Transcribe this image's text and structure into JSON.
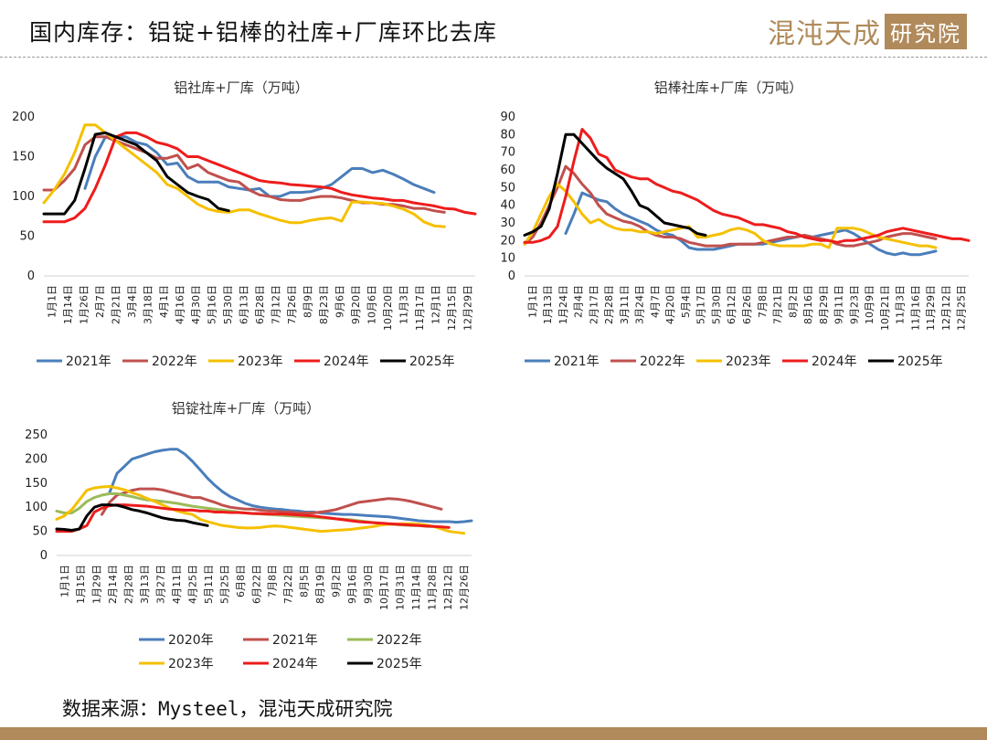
{
  "header": {
    "title": "国内库存：铝锭+铝棒的社库+厂库环比去库",
    "logo_text": "混沌天成",
    "logo_box_text": "研究院"
  },
  "footer": {
    "source": "数据来源：Mysteel，混沌天成研究院"
  },
  "colors": {
    "2020": "#4a7ebb",
    "2021": "#4a7ebb",
    "2022": "#c0504d",
    "2023": "#f5c000",
    "2024": "#ee1c1c",
    "2025": "#000000",
    "2022_ingot": "#9bbb59",
    "2021_ingot": "#c0504d",
    "accent": "#b08a5a"
  },
  "chart_data": [
    {
      "type": "line",
      "title": "铝社库+厂库（万吨）",
      "ylim": [
        0,
        200
      ],
      "yticks": [
        0,
        50,
        100,
        150,
        200
      ],
      "x_labels": [
        "1月1日",
        "1月14日",
        "1月26日",
        "2月7日",
        "2月21日",
        "3月4日",
        "3月18日",
        "4月1日",
        "4月16日",
        "4月30日",
        "5月16日",
        "5月30日",
        "6月13日",
        "6月28日",
        "7月12日",
        "7月26日",
        "8月9日",
        "8月23日",
        "9月6日",
        "9月20日",
        "10月6日",
        "10月20日",
        "11月3日",
        "11月17日",
        "12月1日",
        "12月15日",
        "12月29日"
      ],
      "series": [
        {
          "name": "2021年",
          "values": [
            null,
            null,
            null,
            null,
            110,
            150,
            175,
            175,
            175,
            168,
            165,
            155,
            140,
            142,
            125,
            118,
            118,
            118,
            112,
            110,
            108,
            110,
            100,
            100,
            105,
            105,
            106,
            110,
            115,
            125,
            135,
            135,
            130,
            133,
            128,
            122,
            115,
            110,
            105
          ]
        },
        {
          "name": "2022年",
          "values": [
            108,
            108,
            120,
            135,
            165,
            175,
            175,
            170,
            165,
            160,
            155,
            148,
            148,
            152,
            135,
            140,
            130,
            125,
            120,
            118,
            108,
            102,
            100,
            96,
            95,
            95,
            98,
            100,
            100,
            98,
            95,
            92,
            92,
            90,
            90,
            88,
            85,
            85,
            82,
            80
          ]
        },
        {
          "name": "2023年",
          "values": [
            92,
            108,
            128,
            155,
            190,
            190,
            180,
            170,
            160,
            150,
            140,
            130,
            115,
            110,
            100,
            90,
            84,
            81,
            80,
            83,
            83,
            78,
            74,
            70,
            67,
            67,
            70,
            72,
            73,
            69,
            93,
            93,
            92,
            91,
            88,
            84,
            78,
            68,
            63,
            62
          ]
        },
        {
          "name": "2024年",
          "values": [
            68,
            68,
            68,
            73,
            85,
            110,
            140,
            175,
            180,
            180,
            175,
            168,
            165,
            160,
            150,
            150,
            145,
            140,
            135,
            130,
            125,
            120,
            118,
            117,
            115,
            114,
            113,
            112,
            110,
            105,
            102,
            100,
            98,
            97,
            95,
            95,
            92,
            90,
            88,
            85,
            84,
            80,
            78
          ]
        },
        {
          "name": "2025年",
          "values": [
            78,
            78,
            78,
            95,
            135,
            178,
            180,
            175,
            170,
            165,
            155,
            145,
            125,
            115,
            105,
            100,
            96,
            85,
            82
          ]
        }
      ]
    },
    {
      "type": "line",
      "title": "铝棒社库+厂库（万吨）",
      "ylim": [
        0,
        90
      ],
      "yticks": [
        0,
        10,
        20,
        30,
        40,
        50,
        60,
        70,
        80,
        90
      ],
      "x_labels": [
        "1月1日",
        "1月13日",
        "1月24日",
        "2月4日",
        "2月17日",
        "2月28日",
        "3月11日",
        "3月24日",
        "4月7日",
        "4月20日",
        "5月4日",
        "5月17日",
        "5月30日",
        "6月12日",
        "6月26日",
        "7月8日",
        "7月21日",
        "8月2日",
        "8月16日",
        "8月29日",
        "9月11日",
        "9月23日",
        "10月9日",
        "10月21日",
        "11月3日",
        "11月16日",
        "11月29日",
        "12月12日",
        "12月25日"
      ],
      "series": [
        {
          "name": "2021年",
          "values": [
            null,
            null,
            null,
            null,
            null,
            24,
            35,
            47,
            45,
            43,
            42,
            38,
            35,
            33,
            31,
            29,
            26,
            24,
            23,
            20,
            16,
            15,
            15,
            15,
            16,
            17,
            18,
            18,
            18,
            18,
            19,
            20,
            21,
            22,
            23,
            22,
            23,
            24,
            25,
            26,
            24,
            21,
            18,
            15,
            13,
            12,
            13,
            12,
            12,
            13,
            14
          ]
        },
        {
          "name": "2022年",
          "values": [
            18,
            22,
            30,
            40,
            50,
            62,
            58,
            52,
            47,
            40,
            35,
            33,
            31,
            30,
            28,
            25,
            23,
            22,
            22,
            21,
            19,
            18,
            17,
            17,
            17,
            18,
            18,
            18,
            18,
            19,
            20,
            21,
            22,
            22,
            23,
            22,
            21,
            20,
            18,
            17,
            17,
            18,
            19,
            20,
            22,
            23,
            24,
            24,
            23,
            22,
            21
          ]
        },
        {
          "name": "2023年",
          "values": [
            18,
            25,
            35,
            45,
            52,
            48,
            42,
            35,
            30,
            32,
            29,
            27,
            26,
            26,
            25,
            25,
            24,
            25,
            26,
            27,
            28,
            22,
            22,
            23,
            24,
            26,
            27,
            26,
            24,
            20,
            18,
            17,
            17,
            17,
            17,
            18,
            18,
            16,
            27,
            27,
            27,
            26,
            24,
            22,
            21,
            20,
            19,
            18,
            17,
            17,
            16
          ]
        },
        {
          "name": "2024年",
          "values": [
            19,
            19,
            20,
            22,
            28,
            45,
            65,
            83,
            78,
            69,
            67,
            60,
            58,
            56,
            55,
            55,
            52,
            50,
            48,
            47,
            45,
            43,
            40,
            37,
            35,
            34,
            33,
            31,
            29,
            29,
            28,
            27,
            25,
            24,
            22,
            21,
            20,
            20,
            19,
            20,
            20,
            21,
            22,
            23,
            25,
            26,
            27,
            26,
            25,
            24,
            23,
            22,
            21,
            21,
            20
          ]
        },
        {
          "name": "2025年",
          "values": [
            23,
            25,
            28,
            38,
            58,
            80,
            80,
            75,
            70,
            65,
            61,
            58,
            55,
            48,
            40,
            38,
            34,
            30,
            29,
            28,
            27,
            24,
            23
          ]
        }
      ]
    },
    {
      "type": "line",
      "title": "铝锭社库+厂库（万吨）",
      "ylim": [
        0,
        250
      ],
      "yticks": [
        0,
        50,
        100,
        150,
        200,
        250
      ],
      "x_labels": [
        "1月1日",
        "1月15日",
        "1月29日",
        "2月14日",
        "2月28日",
        "3月13日",
        "3月27日",
        "4月11日",
        "4月25日",
        "5月11日",
        "5月25日",
        "6月8日",
        "6月22日",
        "7月8日",
        "7月22日",
        "8月5日",
        "8月19日",
        "9月2日",
        "9月16日",
        "9月30日",
        "10月17日",
        "10月31日",
        "11月14日",
        "11月28日",
        "12月12日",
        "12月26日"
      ],
      "series": [
        {
          "name": "2020年",
          "values": [
            null,
            null,
            null,
            null,
            null,
            null,
            null,
            130,
            170,
            185,
            200,
            205,
            210,
            215,
            218,
            220,
            220,
            210,
            195,
            178,
            160,
            145,
            132,
            122,
            115,
            108,
            103,
            100,
            98,
            96,
            95,
            93,
            92,
            90,
            90,
            88,
            87,
            86,
            85,
            85,
            84,
            83,
            82,
            81,
            80,
            78,
            76,
            74,
            72,
            71,
            70,
            70,
            70,
            69,
            70,
            72
          ]
        },
        {
          "name": "2021年",
          "values": [
            null,
            null,
            null,
            null,
            null,
            null,
            85,
            110,
            125,
            130,
            135,
            138,
            138,
            138,
            136,
            132,
            128,
            124,
            120,
            120,
            115,
            110,
            104,
            100,
            98,
            96,
            96,
            94,
            92,
            92,
            90,
            90,
            88,
            88,
            88,
            90,
            92,
            95,
            100,
            105,
            110,
            112,
            114,
            116,
            118,
            117,
            115,
            112,
            108,
            104,
            100,
            96
          ]
        },
        {
          "name": "2022年",
          "values": [
            92,
            88,
            88,
            98,
            112,
            120,
            125,
            128,
            128,
            125,
            122,
            118,
            115,
            114,
            112,
            110,
            108,
            105,
            102,
            100,
            98,
            96,
            94,
            92,
            90,
            88,
            87,
            86,
            85,
            84,
            83,
            82,
            81,
            80,
            79,
            78,
            77,
            76,
            75,
            74,
            72,
            70,
            68,
            66,
            65,
            64,
            63,
            62,
            62,
            60,
            60
          ]
        },
        {
          "name": "2023年",
          "values": [
            75,
            82,
            95,
            115,
            135,
            140,
            142,
            143,
            140,
            136,
            130,
            125,
            118,
            112,
            105,
            98,
            92,
            88,
            85,
            75,
            70,
            66,
            62,
            60,
            58,
            57,
            57,
            58,
            60,
            61,
            60,
            58,
            56,
            54,
            52,
            50,
            51,
            52,
            53,
            54,
            56,
            58,
            60,
            63,
            65,
            65,
            66,
            66,
            65,
            63,
            60,
            55,
            50,
            48,
            46
          ]
        },
        {
          "name": "2024年",
          "values": [
            50,
            50,
            50,
            55,
            62,
            90,
            98,
            103,
            105,
            105,
            104,
            103,
            102,
            100,
            98,
            96,
            95,
            94,
            94,
            92,
            92,
            90,
            90,
            89,
            89,
            88,
            87,
            87,
            86,
            86,
            86,
            85,
            84,
            83,
            82,
            80,
            78,
            76,
            74,
            72,
            70,
            69,
            68,
            67,
            66,
            65,
            64,
            63,
            62,
            61,
            60,
            59,
            58
          ]
        },
        {
          "name": "2025年",
          "values": [
            55,
            54,
            52,
            55,
            82,
            100,
            105,
            105,
            104,
            100,
            95,
            92,
            88,
            83,
            78,
            75,
            73,
            72,
            68,
            65,
            62
          ]
        }
      ]
    }
  ]
}
